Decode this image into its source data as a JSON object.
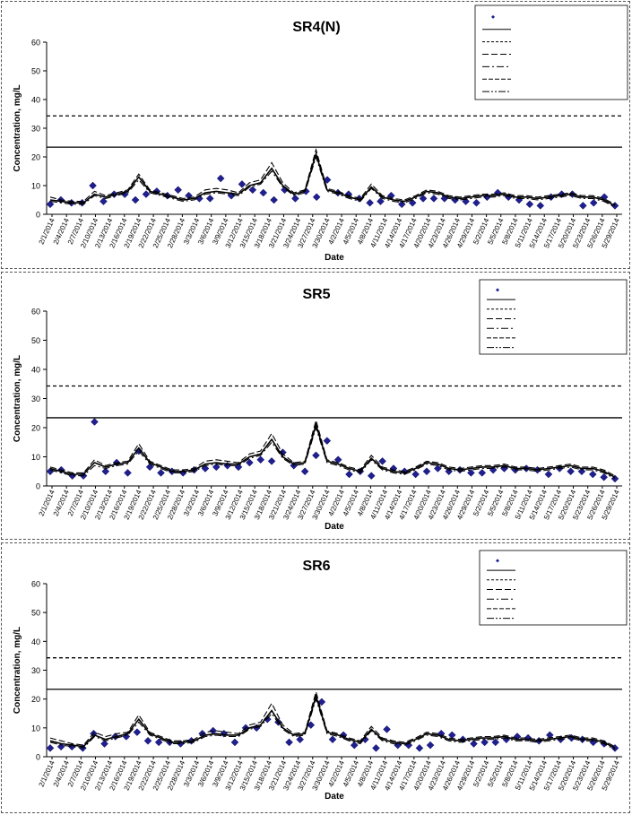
{
  "chart_data": [
    {
      "type": "line",
      "title": "SR4(N)",
      "xlabel": "Date",
      "ylabel": "Concentration, mg/L",
      "ylim": [
        0,
        60
      ],
      "yticks": [
        "0",
        "10",
        "20",
        "30",
        "40",
        "50",
        "60"
      ],
      "xticks": [
        "2/1/2014",
        "2/4/2014",
        "2/7/2014",
        "2/10/2014",
        "2/13/2014",
        "2/16/2014",
        "2/19/2014",
        "2/22/2014",
        "2/25/2014",
        "2/28/2014",
        "3/3/2014",
        "3/6/2014",
        "3/9/2014",
        "3/12/2014",
        "3/15/2014",
        "3/18/2014",
        "3/21/2014",
        "3/24/2014",
        "3/27/2014",
        "3/30/2014",
        "4/2/2014",
        "4/5/2014",
        "4/8/2014",
        "4/11/2014",
        "4/14/2014",
        "4/17/2014",
        "4/20/2014",
        "4/23/2014",
        "4/26/2014",
        "4/29/2014",
        "5/2/2014",
        "5/5/2014",
        "5/8/2014",
        "5/11/2014",
        "5/14/2014",
        "5/17/2014",
        "5/20/2014",
        "5/23/2014",
        "5/26/2014",
        "5/29/2014"
      ],
      "reference_lines": [
        23.4,
        34.3
      ],
      "legend_position": "top-right",
      "legend_entries": [
        "",
        "",
        "",
        "",
        "",
        "",
        ""
      ],
      "series": [
        {
          "style": "points",
          "values": [
            3.5,
            5,
            4,
            4,
            10,
            4.5,
            7,
            7,
            5,
            7,
            8,
            6.5,
            8.5,
            6.5,
            5.5,
            5.5,
            12.5,
            6.5,
            10.5,
            8.5,
            7.5,
            5,
            8.5,
            5.5,
            8,
            6,
            12,
            7.5,
            7,
            5.5,
            4,
            4.5,
            6.5,
            3.5,
            4,
            5.5,
            5.5,
            5.5,
            5,
            4.5,
            4,
            6,
            7.5,
            6,
            5,
            3.5,
            3,
            6,
            7,
            7,
            3,
            4,
            6,
            3
          ]
        },
        {
          "style": "solid",
          "values": [
            5,
            4.5,
            4,
            4,
            7,
            6,
            7,
            8,
            13,
            8,
            7,
            6,
            5,
            5.5,
            7.5,
            8,
            7.5,
            7,
            10,
            11,
            16,
            10,
            7,
            8,
            21,
            8.5,
            7.5,
            6,
            5,
            9.5,
            6,
            5,
            4.5,
            6,
            8,
            7.5,
            6,
            5.5,
            6,
            6.5,
            6.5,
            7,
            6,
            6,
            5.5,
            6,
            6.5,
            7,
            6,
            6,
            5,
            3
          ]
        },
        {
          "style": "dashed",
          "values": [
            6,
            5,
            4.5,
            4.5,
            8,
            6.5,
            7.5,
            8.5,
            14,
            8.5,
            7.5,
            6.5,
            5.5,
            6,
            8.5,
            9,
            8.5,
            7.5,
            11,
            12,
            18,
            11,
            7.5,
            8.5,
            22.5,
            9,
            8,
            6.5,
            5.5,
            10.5,
            6.5,
            5.5,
            5,
            6.5,
            8.5,
            8,
            6.5,
            6,
            6.5,
            7,
            7,
            7.5,
            6.5,
            6.5,
            6,
            6.5,
            7,
            7.5,
            6.5,
            6.5,
            5.5,
            3.5
          ]
        },
        {
          "style": "dashdot",
          "values": [
            4.5,
            4,
            3.5,
            3.5,
            6.5,
            5.5,
            6.5,
            7.5,
            12,
            7.5,
            6.5,
            5.5,
            4.5,
            5,
            7,
            7.5,
            7,
            6.5,
            9.5,
            10.5,
            15,
            9.5,
            6.5,
            7.5,
            20,
            8,
            7,
            5.5,
            4.5,
            9,
            5.5,
            4.5,
            4,
            5.5,
            7.5,
            7,
            5.5,
            5,
            5.5,
            6,
            6,
            6.5,
            5.5,
            5.5,
            5,
            5.5,
            6,
            6.5,
            5.5,
            5.5,
            4.5,
            2.5
          ]
        }
      ]
    },
    {
      "type": "line",
      "title": "SR5",
      "xlabel": "Date",
      "ylabel": "Concentration, mg/L",
      "ylim": [
        0,
        60
      ],
      "yticks": [
        "0",
        "10",
        "20",
        "30",
        "40",
        "50",
        "60"
      ],
      "xticks": [
        "2/1/2014",
        "2/4/2014",
        "2/7/2014",
        "2/10/2014",
        "2/13/2014",
        "2/16/2014",
        "2/19/2014",
        "2/22/2014",
        "2/25/2014",
        "2/28/2014",
        "3/3/2014",
        "3/6/2014",
        "3/9/2014",
        "3/12/2014",
        "3/15/2014",
        "3/18/2014",
        "3/21/2014",
        "3/24/2014",
        "3/27/2014",
        "3/30/2014",
        "4/2/2014",
        "4/5/2014",
        "4/8/2014",
        "4/11/2014",
        "4/14/2014",
        "4/17/2014",
        "4/20/2014",
        "4/23/2014",
        "4/26/2014",
        "4/29/2014",
        "5/2/2014",
        "5/5/2014",
        "5/8/2014",
        "5/11/2014",
        "5/14/2014",
        "5/17/2014",
        "5/20/2014",
        "5/23/2014",
        "5/26/2014",
        "5/29/2014"
      ],
      "reference_lines": [
        23.4,
        34.3
      ],
      "legend_position": "top-right",
      "legend_entries": [
        "",
        "",
        "",
        "",
        "",
        "",
        ""
      ],
      "series": [
        {
          "style": "points",
          "values": [
            5,
            5.5,
            3.5,
            3.5,
            22,
            5,
            8,
            4.5,
            12,
            6.5,
            4.5,
            5,
            4.5,
            5.5,
            6,
            6.5,
            7,
            6.5,
            8,
            9,
            8.5,
            11.5,
            7,
            5,
            10.5,
            15.5,
            9,
            4,
            5,
            3.5,
            8.5,
            6,
            5,
            4,
            5,
            6,
            5,
            5.5,
            4.5,
            4.5,
            5.5,
            6,
            5.5,
            6,
            5.5,
            4,
            6,
            5,
            5,
            4,
            3,
            2.5
          ]
        },
        {
          "style": "solid",
          "values": [
            6,
            5,
            4,
            4,
            8,
            6.5,
            7.5,
            8,
            13,
            8,
            6.5,
            5,
            5,
            5.5,
            7.5,
            8,
            7.5,
            7.5,
            10,
            11,
            16,
            10,
            7.5,
            8,
            21,
            8.5,
            7.5,
            6,
            5,
            9.5,
            6,
            5,
            4.5,
            6,
            8,
            7.5,
            6,
            5.5,
            6,
            6.5,
            6.5,
            7,
            6,
            6,
            5.5,
            6,
            6.5,
            7,
            6,
            6,
            5,
            3
          ]
        },
        {
          "style": "dashed",
          "values": [
            6.5,
            5.5,
            4.5,
            4.5,
            9,
            7,
            8,
            8.5,
            14.5,
            8.5,
            7,
            5.5,
            5.5,
            6,
            8.5,
            9,
            8.5,
            8,
            11,
            12,
            18,
            11,
            8,
            8.5,
            22.5,
            9,
            8,
            6.5,
            5.5,
            10.5,
            6.5,
            5.5,
            5,
            6.5,
            8.5,
            8,
            6.5,
            6,
            6.5,
            7,
            7,
            7.5,
            6.5,
            6.5,
            6,
            6.5,
            7,
            7.5,
            6.5,
            6.5,
            5.5,
            3.5
          ]
        },
        {
          "style": "dashdot",
          "values": [
            5.5,
            4.5,
            3.5,
            3.5,
            7,
            6,
            7,
            7.5,
            12,
            7.5,
            6,
            4.5,
            4.5,
            5,
            7,
            7.5,
            7,
            7,
            9.5,
            10.5,
            15,
            9.5,
            7,
            7.5,
            20,
            8,
            7,
            5.5,
            4.5,
            9,
            5.5,
            4.5,
            4,
            5.5,
            7.5,
            7,
            5.5,
            5,
            5.5,
            6,
            6,
            6.5,
            5.5,
            5.5,
            5,
            5.5,
            6,
            6.5,
            5.5,
            5.5,
            4.5,
            2.5
          ]
        }
      ]
    },
    {
      "type": "line",
      "title": "SR6",
      "xlabel": "Date",
      "ylabel": "Concentration, mg/L",
      "ylim": [
        0,
        60
      ],
      "yticks": [
        "0",
        "10",
        "20",
        "30",
        "40",
        "50",
        "60"
      ],
      "xticks": [
        "2/1/2014",
        "2/4/2014",
        "2/7/2014",
        "2/10/2014",
        "2/13/2014",
        "2/16/2014",
        "2/19/2014",
        "2/22/2014",
        "2/25/2014",
        "2/28/2014",
        "3/3/2014",
        "3/6/2014",
        "3/9/2014",
        "3/12/2014",
        "3/15/2014",
        "3/18/2014",
        "3/21/2014",
        "3/24/2014",
        "3/27/2014",
        "3/30/2014",
        "4/2/2014",
        "4/5/2014",
        "4/8/2014",
        "4/11/2014",
        "4/14/2014",
        "4/17/2014",
        "4/20/2014",
        "4/23/2014",
        "4/26/2014",
        "4/29/2014",
        "5/2/2014",
        "5/5/2014",
        "5/8/2014",
        "5/11/2014",
        "5/14/2014",
        "5/17/2014",
        "5/20/2014",
        "5/23/2014",
        "5/26/2014",
        "5/29/2014"
      ],
      "reference_lines": [
        23.4,
        34.3
      ],
      "legend_position": "top-right",
      "legend_entries": [
        "",
        "",
        "",
        "",
        "",
        "",
        ""
      ],
      "series": [
        {
          "style": "points",
          "values": [
            3,
            3.5,
            3.5,
            3,
            8,
            4.5,
            7,
            7,
            8.5,
            5.5,
            5,
            5,
            4.5,
            5.5,
            8,
            9,
            8,
            5,
            10,
            10,
            13,
            12,
            5,
            6,
            11,
            19,
            6,
            7.5,
            4,
            6,
            3,
            9.5,
            4,
            4,
            3,
            4,
            8,
            7.5,
            6,
            4.5,
            5,
            5,
            6,
            7,
            6.5,
            5.5,
            7.5,
            6,
            6.5,
            6,
            5,
            4.5,
            3
          ]
        },
        {
          "style": "solid",
          "values": [
            5.5,
            4.5,
            4,
            3.5,
            7.5,
            6,
            7,
            8,
            13,
            8,
            6.5,
            5,
            5,
            5.5,
            7.5,
            8,
            7.5,
            7.5,
            10,
            11,
            16,
            10,
            7.5,
            8,
            21,
            8.5,
            7.5,
            6,
            5,
            9.5,
            6,
            5,
            4.5,
            6,
            8,
            7.5,
            6,
            5.5,
            6,
            6.5,
            6.5,
            7,
            6,
            6,
            5.5,
            6,
            6.5,
            7,
            6,
            6,
            5,
            3
          ]
        },
        {
          "style": "dashed",
          "values": [
            6.5,
            5.5,
            4.5,
            4,
            8.5,
            7,
            8,
            8.5,
            14.5,
            8.5,
            7,
            5.5,
            5.5,
            6,
            8.5,
            9,
            8.5,
            8,
            11,
            12,
            18.5,
            11,
            8,
            8.5,
            22.5,
            9,
            8,
            6.5,
            5.5,
            10.5,
            6.5,
            5.5,
            5,
            6.5,
            8.5,
            8,
            6.5,
            6,
            6.5,
            7,
            7,
            7.5,
            6.5,
            6.5,
            6,
            6.5,
            7,
            7.5,
            6.5,
            6.5,
            5.5,
            3.5
          ]
        },
        {
          "style": "dashdot",
          "values": [
            5,
            4,
            3.5,
            3,
            7,
            5.5,
            6.5,
            7.5,
            12,
            7.5,
            6,
            4.5,
            4.5,
            5,
            7,
            7.5,
            7,
            7,
            9.5,
            10.5,
            15,
            9.5,
            7,
            7.5,
            20,
            8,
            7,
            5.5,
            4.5,
            9,
            5.5,
            4.5,
            4,
            5.5,
            7.5,
            7,
            5.5,
            5,
            5.5,
            6,
            6,
            6.5,
            5.5,
            5.5,
            5,
            5.5,
            6,
            6.5,
            5.5,
            5.5,
            4.5,
            2.5
          ]
        }
      ]
    }
  ],
  "colors": {
    "marker": "#1f1f8f",
    "line": "#000000",
    "axis": "#000000",
    "panel_border": "#555555"
  }
}
